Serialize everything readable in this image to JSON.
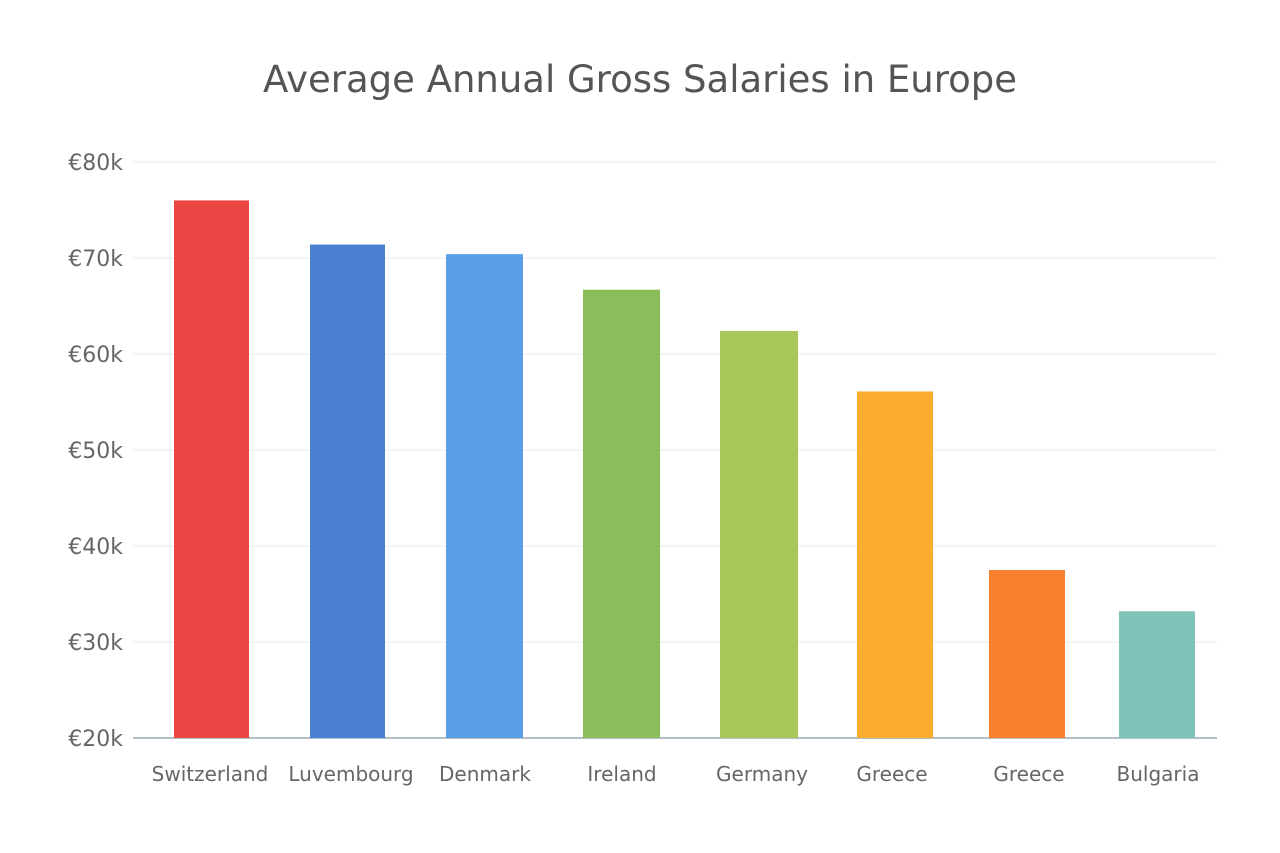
{
  "chart_data": {
    "type": "bar",
    "title": "Average Annual Gross Salaries in Europe",
    "xlabel": "",
    "ylabel": "",
    "ylim": [
      20,
      80
    ],
    "y_ticks": [
      "€20k",
      "€30k",
      "€40k",
      "€50k",
      "€60k",
      "€70k",
      "€80k"
    ],
    "y_tick_values": [
      20,
      30,
      40,
      50,
      60,
      70,
      80
    ],
    "grid": true,
    "categories": [
      "Switzerland",
      "Luvembourg",
      "Denmark",
      "Ireland",
      "Germany",
      "Greece",
      "Greece",
      "Bulgaria"
    ],
    "values": [
      76,
      71.4,
      70.4,
      66.7,
      62.4,
      56.1,
      37.5,
      33.2
    ],
    "colors": [
      "#ea4644",
      "#4a80d2",
      "#5a9ee8",
      "#8bbd5a",
      "#a8c65a",
      "#fbab2e",
      "#fa8130",
      "#7fc4b8"
    ]
  }
}
